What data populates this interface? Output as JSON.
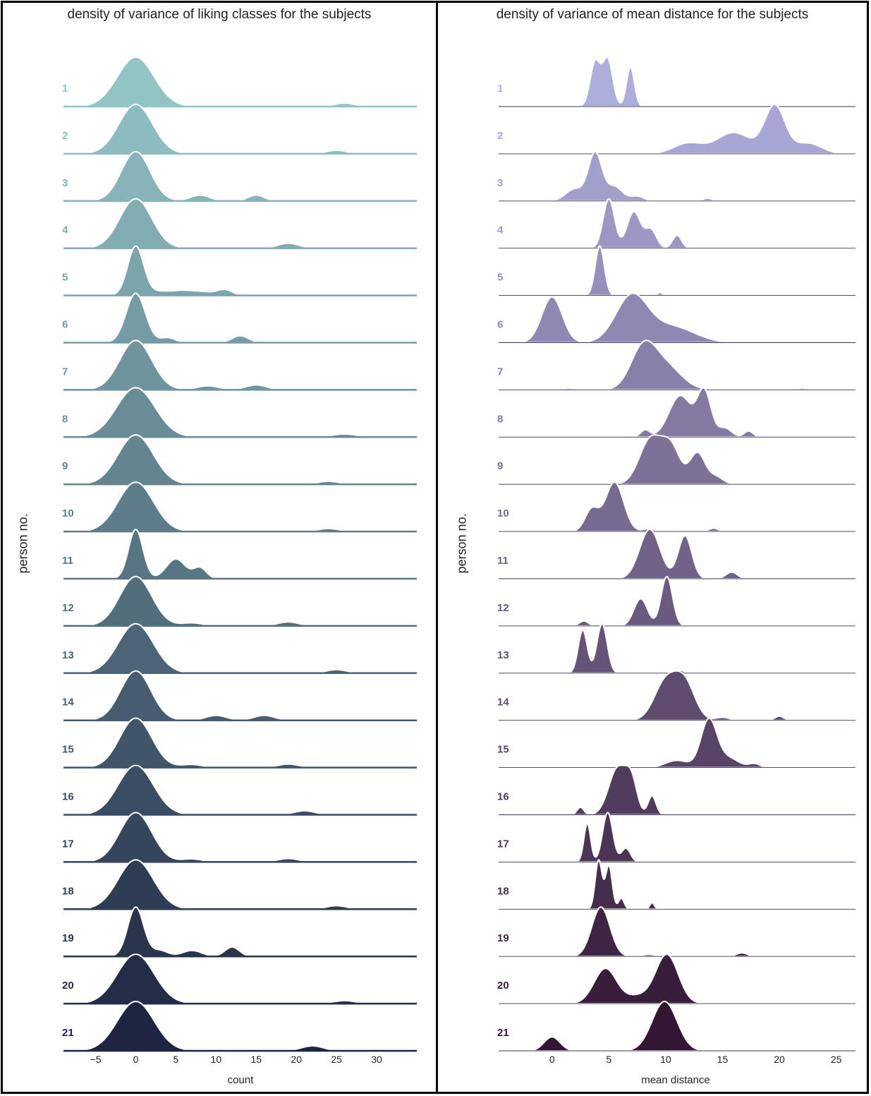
{
  "chart_data": [
    {
      "type": "ridgeline",
      "title": "density of variance of liking classes for the subjects",
      "xlabel": "count",
      "ylabel": "person no.",
      "xlim": [
        -9,
        35
      ],
      "xticks": [
        -5,
        0,
        5,
        10,
        15,
        20,
        25,
        30
      ],
      "palette": [
        "#92c4c6",
        "#1e2540"
      ],
      "categories": [
        "1",
        "2",
        "3",
        "4",
        "5",
        "6",
        "7",
        "8",
        "9",
        "10",
        "11",
        "12",
        "13",
        "14",
        "15",
        "16",
        "17",
        "18",
        "19",
        "20",
        "21"
      ],
      "series": [
        {
          "name": "1",
          "range": [
            -9,
            35
          ],
          "components": [
            [
              0,
              2.3,
              1
            ],
            [
              26,
              1.3,
              0.07
            ]
          ]
        },
        {
          "name": "2",
          "range": [
            -9,
            35
          ],
          "components": [
            [
              0,
              2.1,
              1
            ],
            [
              25,
              1.3,
              0.07
            ]
          ]
        },
        {
          "name": "3",
          "range": [
            -9,
            35
          ],
          "components": [
            [
              0,
              1.8,
              1
            ],
            [
              8,
              1.2,
              0.12
            ],
            [
              15,
              1.0,
              0.12
            ]
          ]
        },
        {
          "name": "4",
          "range": [
            -9,
            35
          ],
          "components": [
            [
              0,
              2.0,
              1
            ],
            [
              19,
              1.3,
              0.1
            ]
          ]
        },
        {
          "name": "5",
          "range": [
            -9,
            35
          ],
          "components": [
            [
              0,
              1.0,
              1
            ],
            [
              3,
              1.2,
              0.07
            ],
            [
              6,
              1.5,
              0.1
            ],
            [
              8.5,
              1.0,
              0.05
            ],
            [
              11,
              1.0,
              0.12
            ]
          ]
        },
        {
          "name": "6",
          "range": [
            -9,
            35
          ],
          "components": [
            [
              0,
              1.2,
              1
            ],
            [
              4,
              0.9,
              0.1
            ],
            [
              13,
              1.0,
              0.14
            ]
          ]
        },
        {
          "name": "7",
          "range": [
            -9,
            35
          ],
          "components": [
            [
              0,
              2.0,
              1
            ],
            [
              9,
              1.4,
              0.08
            ],
            [
              15,
              1.3,
              0.1
            ]
          ]
        },
        {
          "name": "8",
          "range": [
            -9,
            35
          ],
          "components": [
            [
              0,
              2.4,
              1
            ],
            [
              26,
              1.6,
              0.06
            ]
          ]
        },
        {
          "name": "9",
          "range": [
            -9,
            35
          ],
          "components": [
            [
              0,
              2.2,
              1
            ],
            [
              24,
              1.3,
              0.06
            ]
          ]
        },
        {
          "name": "10",
          "range": [
            -9,
            35
          ],
          "components": [
            [
              0,
              2.2,
              1
            ],
            [
              24,
              1.3,
              0.06
            ]
          ]
        },
        {
          "name": "11",
          "range": [
            -9,
            35
          ],
          "components": [
            [
              0,
              0.9,
              1
            ],
            [
              5,
              1.2,
              0.4
            ],
            [
              8,
              0.8,
              0.22
            ]
          ]
        },
        {
          "name": "12",
          "range": [
            -9,
            35
          ],
          "components": [
            [
              0,
              2.0,
              1
            ],
            [
              7,
              1.3,
              0.06
            ],
            [
              19,
              1.3,
              0.08
            ]
          ]
        },
        {
          "name": "13",
          "range": [
            -9,
            35
          ],
          "components": [
            [
              0,
              2.2,
              1
            ],
            [
              25,
              1.3,
              0.07
            ]
          ]
        },
        {
          "name": "14",
          "range": [
            -9,
            35
          ],
          "components": [
            [
              0,
              1.9,
              1
            ],
            [
              10,
              1.3,
              0.1
            ],
            [
              16,
              1.3,
              0.1
            ]
          ]
        },
        {
          "name": "15",
          "range": [
            -9,
            35
          ],
          "components": [
            [
              0,
              2.0,
              1
            ],
            [
              7,
              1.3,
              0.06
            ],
            [
              19,
              1.3,
              0.07
            ]
          ]
        },
        {
          "name": "16",
          "range": [
            -9,
            35
          ],
          "components": [
            [
              0,
              2.2,
              1
            ],
            [
              21,
              1.3,
              0.08
            ]
          ]
        },
        {
          "name": "17",
          "range": [
            -9,
            35
          ],
          "components": [
            [
              0,
              2.0,
              1
            ],
            [
              7,
              1.3,
              0.06
            ],
            [
              19,
              1.3,
              0.07
            ]
          ]
        },
        {
          "name": "18",
          "range": [
            -9,
            35
          ],
          "components": [
            [
              0,
              2.2,
              1
            ],
            [
              25,
              1.3,
              0.07
            ]
          ]
        },
        {
          "name": "19",
          "range": [
            -9,
            35
          ],
          "components": [
            [
              0,
              1.0,
              1
            ],
            [
              3,
              1.0,
              0.12
            ],
            [
              7,
              1.2,
              0.12
            ],
            [
              12,
              0.9,
              0.19
            ]
          ]
        },
        {
          "name": "20",
          "range": [
            -9,
            35
          ],
          "components": [
            [
              0,
              2.3,
              1
            ],
            [
              26,
              1.4,
              0.06
            ]
          ]
        },
        {
          "name": "21",
          "range": [
            -9,
            35
          ],
          "components": [
            [
              0,
              2.3,
              1
            ],
            [
              22,
              1.4,
              0.1
            ]
          ]
        }
      ]
    },
    {
      "type": "ridgeline",
      "title": "density of variance of mean distance for the subjects",
      "xlabel": "mean distance",
      "ylabel": "person no.",
      "xlim": [
        -4.7,
        26.7
      ],
      "xticks": [
        0,
        5,
        10,
        15,
        20,
        25
      ],
      "palette": [
        "#aeaedc",
        "#331633"
      ],
      "categories": [
        "1",
        "2",
        "3",
        "4",
        "5",
        "6",
        "7",
        "8",
        "9",
        "10",
        "11",
        "12",
        "13",
        "14",
        "15",
        "16",
        "17",
        "18",
        "19",
        "20",
        "21"
      ],
      "series": [
        {
          "name": "1",
          "range": [
            2.5,
            8.5
          ],
          "components": [
            [
              3.8,
              0.45,
              0.9
            ],
            [
              4.9,
              0.45,
              0.95
            ],
            [
              6.9,
              0.35,
              0.8
            ]
          ]
        },
        {
          "name": "2",
          "range": [
            9.5,
            25.3
          ],
          "components": [
            [
              12,
              1.3,
              0.2
            ],
            [
              16,
              1.5,
              0.4
            ],
            [
              19.6,
              0.9,
              0.9
            ],
            [
              22.5,
              1.2,
              0.2
            ]
          ]
        },
        {
          "name": "3",
          "range": [
            -0.3,
            15.7
          ],
          "components": [
            [
              2,
              0.8,
              0.25
            ],
            [
              3.8,
              0.6,
              1
            ],
            [
              5.5,
              0.7,
              0.3
            ],
            [
              7.5,
              0.6,
              0.1
            ],
            [
              13.7,
              0.4,
              0.06
            ]
          ]
        },
        {
          "name": "4",
          "range": [
            2.8,
            12.8
          ],
          "components": [
            [
              5,
              0.5,
              0.95
            ],
            [
              7.2,
              0.6,
              0.7
            ],
            [
              8.7,
              0.5,
              0.35
            ],
            [
              11,
              0.4,
              0.25
            ]
          ]
        },
        {
          "name": "5",
          "range": [
            2.5,
            10.5
          ],
          "components": [
            [
              4.2,
              0.4,
              1
            ],
            [
              7,
              0.2,
              0.05
            ],
            [
              9.5,
              0.2,
              0.06
            ]
          ]
        },
        {
          "name": "6",
          "range": [
            -3.5,
            16.5
          ],
          "components": [
            [
              0,
              0.9,
              0.85
            ],
            [
              7,
              1.4,
              0.85
            ],
            [
              10.5,
              2.0,
              0.3
            ]
          ]
        },
        {
          "name": "7",
          "range": [
            -1,
            24.8
          ],
          "components": [
            [
              1.5,
              0.5,
              0.04
            ],
            [
              8,
              1.1,
              0.85
            ],
            [
              10,
              1.4,
              0.5
            ],
            [
              22,
              0.5,
              0.04
            ]
          ]
        },
        {
          "name": "8",
          "range": [
            6.8,
            18.8
          ],
          "components": [
            [
              8.2,
              0.4,
              0.12
            ],
            [
              11.3,
              1.0,
              0.7
            ],
            [
              13.4,
              0.6,
              0.75
            ],
            [
              15.2,
              0.6,
              0.15
            ],
            [
              17.3,
              0.4,
              0.1
            ]
          ]
        },
        {
          "name": "9",
          "range": [
            4.4,
            16.7
          ],
          "components": [
            [
              8.7,
              1.0,
              0.8
            ],
            [
              10.5,
              0.8,
              0.6
            ],
            [
              12.8,
              0.7,
              0.55
            ],
            [
              14.5,
              0.6,
              0.12
            ]
          ]
        },
        {
          "name": "10",
          "range": [
            1.3,
            15.8
          ],
          "components": [
            [
              3.5,
              0.6,
              0.4
            ],
            [
              5.5,
              0.8,
              0.9
            ],
            [
              8.5,
              0.5,
              0.05
            ],
            [
              14.2,
              0.4,
              0.06
            ]
          ]
        },
        {
          "name": "11",
          "range": [
            5.8,
            17.2
          ],
          "components": [
            [
              8.6,
              0.9,
              0.75
            ],
            [
              11.7,
              0.6,
              0.65
            ],
            [
              15.8,
              0.5,
              0.1
            ]
          ]
        },
        {
          "name": "12",
          "range": [
            1.5,
            12.2
          ],
          "components": [
            [
              2.8,
              0.4,
              0.1
            ],
            [
              7.8,
              0.6,
              0.55
            ],
            [
              10.1,
              0.5,
              1
            ]
          ]
        },
        {
          "name": "13",
          "range": [
            1,
            15.5
          ],
          "components": [
            [
              2.7,
              0.4,
              0.7
            ],
            [
              4.4,
              0.45,
              0.8
            ],
            [
              11.2,
              0.4,
              0.05
            ]
          ]
        },
        {
          "name": "14",
          "range": [
            6.5,
            22
          ],
          "components": [
            [
              10,
              1.0,
              0.65
            ],
            [
              11.7,
              0.9,
              0.6
            ],
            [
              15,
              0.6,
              0.05
            ],
            [
              20,
              0.4,
              0.07
            ]
          ]
        },
        {
          "name": "15",
          "range": [
            5,
            19
          ],
          "components": [
            [
              11,
              1.0,
              0.15
            ],
            [
              13.8,
              0.7,
              1
            ],
            [
              15.5,
              0.9,
              0.2
            ],
            [
              17.8,
              0.5,
              0.08
            ]
          ]
        },
        {
          "name": "16",
          "range": [
            1.3,
            10.5
          ],
          "components": [
            [
              2.5,
              0.3,
              0.12
            ],
            [
              5.8,
              0.8,
              0.75
            ],
            [
              7,
              0.5,
              0.45
            ],
            [
              8.8,
              0.35,
              0.3
            ]
          ]
        },
        {
          "name": "17",
          "range": [
            1.8,
            8.2
          ],
          "components": [
            [
              3.1,
              0.3,
              0.7
            ],
            [
              4.9,
              0.45,
              0.9
            ],
            [
              6.5,
              0.4,
              0.25
            ]
          ]
        },
        {
          "name": "18",
          "range": [
            3.3,
            9.5
          ],
          "components": [
            [
              4.1,
              0.3,
              0.9
            ],
            [
              5,
              0.3,
              0.8
            ],
            [
              6.1,
              0.25,
              0.2
            ],
            [
              8.8,
              0.2,
              0.12
            ]
          ]
        },
        {
          "name": "19",
          "range": [
            1,
            18.8
          ],
          "components": [
            [
              4.3,
              0.8,
              1
            ],
            [
              8.5,
              0.6,
              0.04
            ],
            [
              16.7,
              0.5,
              0.07
            ]
          ]
        },
        {
          "name": "20",
          "range": [
            1.5,
            14.3
          ],
          "components": [
            [
              4.7,
              1.0,
              0.5
            ],
            [
              10.1,
              1.0,
              0.7
            ],
            [
              7.5,
              1.0,
              0.1
            ]
          ]
        },
        {
          "name": "21",
          "range": [
            -3,
            14.5
          ],
          "components": [
            [
              0,
              0.7,
              0.24
            ],
            [
              9.9,
              1.1,
              0.85
            ]
          ]
        }
      ]
    }
  ]
}
